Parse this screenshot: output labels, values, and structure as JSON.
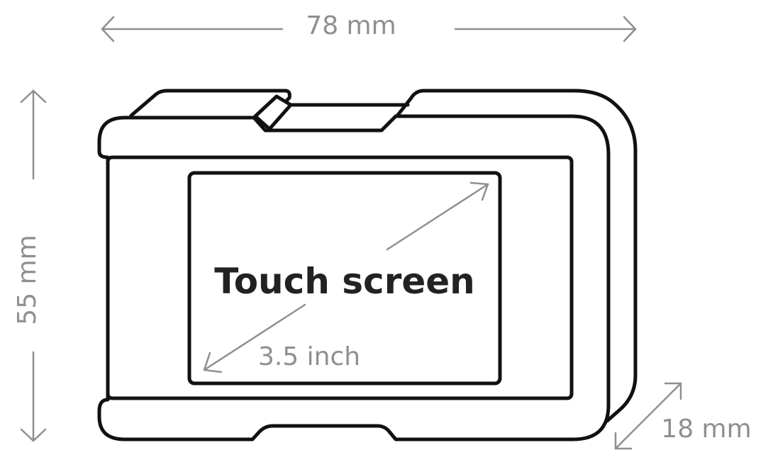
{
  "diagram": {
    "title": "Touch screen",
    "colors": {
      "outline": "#111111",
      "dimension": "#8f8f8f",
      "label": "#222222",
      "background": "#ffffff"
    },
    "dimensions": {
      "width": "78 mm",
      "height": "55 mm",
      "depth": "18 mm",
      "screen_diagonal": "3.5 inch"
    },
    "labels": {
      "screen": "Touch screen"
    }
  }
}
